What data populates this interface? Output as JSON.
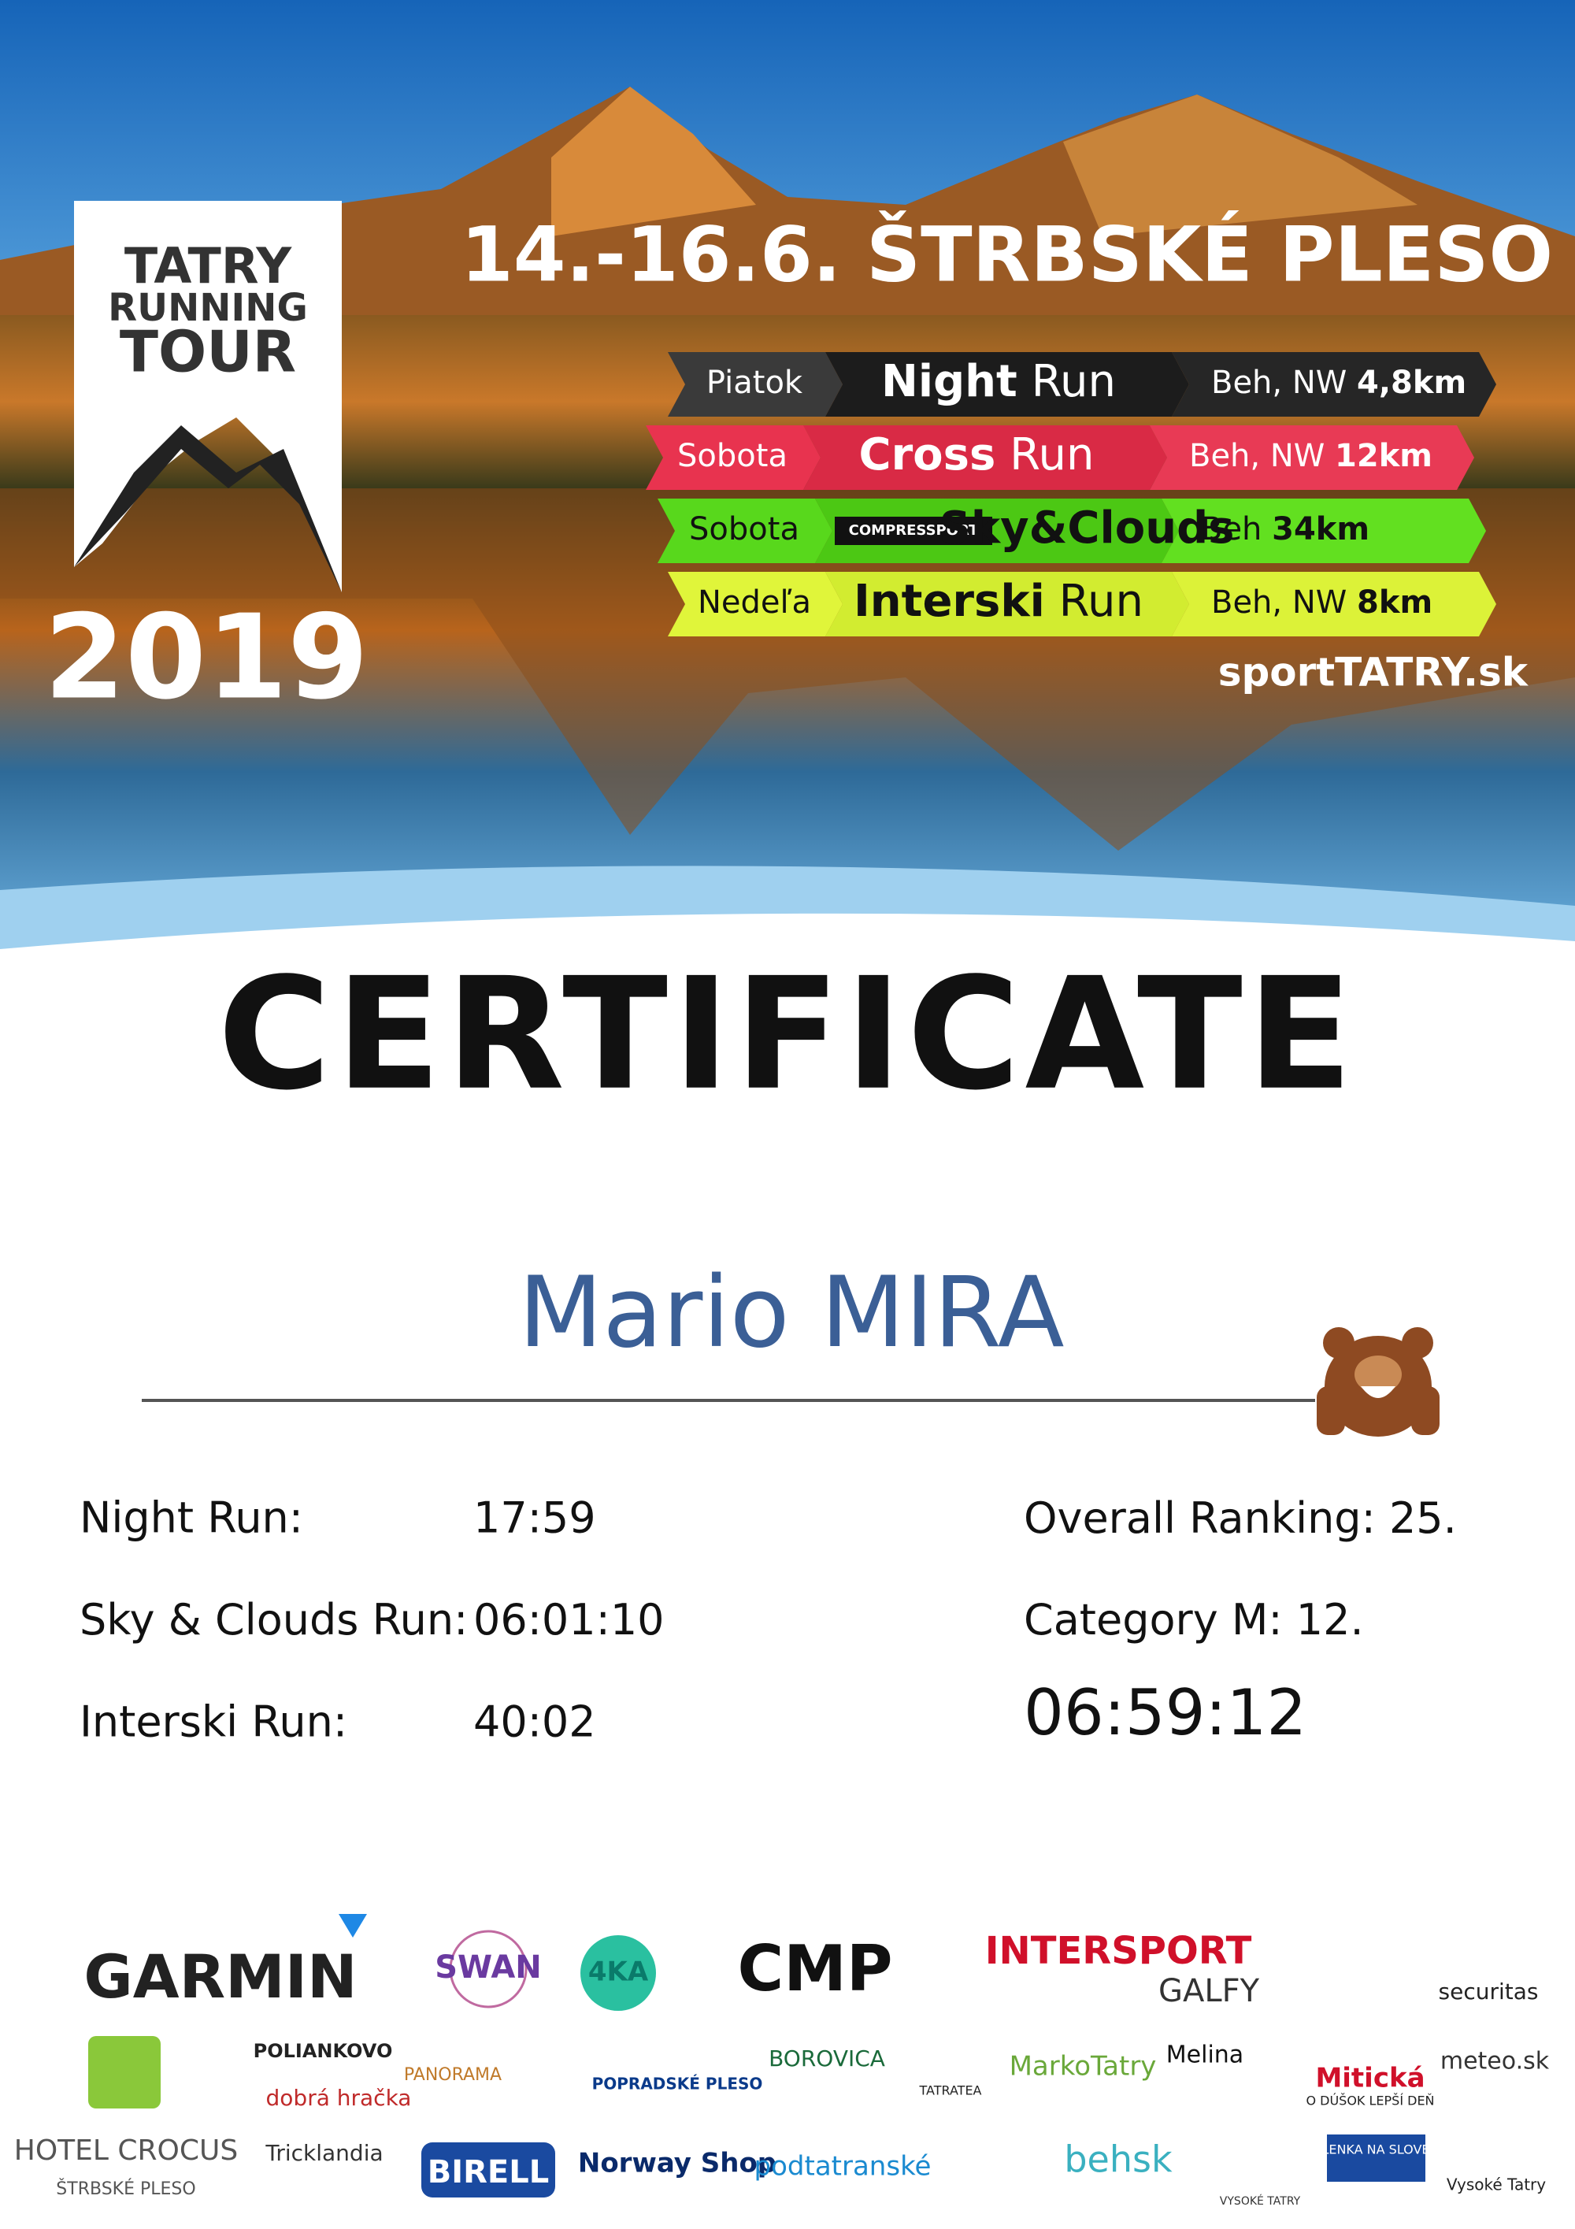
{
  "logo": {
    "line1": "TATRY",
    "line2": "RUNNING",
    "line3": "TOUR",
    "year": "2019"
  },
  "header": {
    "dates": "14.-16.6.",
    "location": "ŠTRBSKÉ PLESO",
    "website": "sportTATRY.sk"
  },
  "races": [
    {
      "day": "Piatok",
      "name": "Night",
      "suffix": "Run",
      "kind": "Beh, NW",
      "distance": "4,8km"
    },
    {
      "day": "Sobota",
      "name": "Cross",
      "suffix": "Run",
      "kind": "Beh, NW",
      "distance": "12km"
    },
    {
      "day": "Sobota",
      "badge": "COMPRESSPORT",
      "name": "Sky&Clouds",
      "kind": "Beh",
      "distance": "34km"
    },
    {
      "day": "Nedeľa",
      "name": "Interski",
      "suffix": "Run",
      "kind": "Beh, NW",
      "distance": "8km"
    }
  ],
  "title": "CERTIFICATE",
  "participant": "Mario MIRA",
  "results": [
    {
      "label": "Night Run:",
      "value": "17:59"
    },
    {
      "label": "Sky & Clouds Run:",
      "value": "06:01:10"
    },
    {
      "label": "Interski Run:",
      "value": "40:02"
    }
  ],
  "ranking": {
    "overall_label": "Overall Ranking:",
    "overall": "25.",
    "category_label": "Category M:",
    "category": "12.",
    "total_time": "06:59:12"
  },
  "sponsors": [
    "GARMIN",
    "SWAN",
    "4KA",
    "CMP",
    "INTERSPORT",
    "GALFY",
    "securitas",
    "POLIANKOVO",
    "dobrá hračka",
    "PANORAMA",
    "POPRADSKÉ PLESO",
    "BOROVICA",
    "TATRATEA",
    "MarkoTatry",
    "Melina",
    "Mitická",
    "O DÚŠOK LEPŠÍ DEŇ",
    "meteo.sk",
    "HOTEL CROCUS",
    "ŠTRBSKÉ PLESO",
    "Tricklandia",
    "BIRELL",
    "Norway Shop",
    "podtatranské",
    "behsk",
    "VYSOKÉ TATRY",
    "DOVOLENKA NA SLOVENSKU",
    "Vysoké Tatry"
  ]
}
